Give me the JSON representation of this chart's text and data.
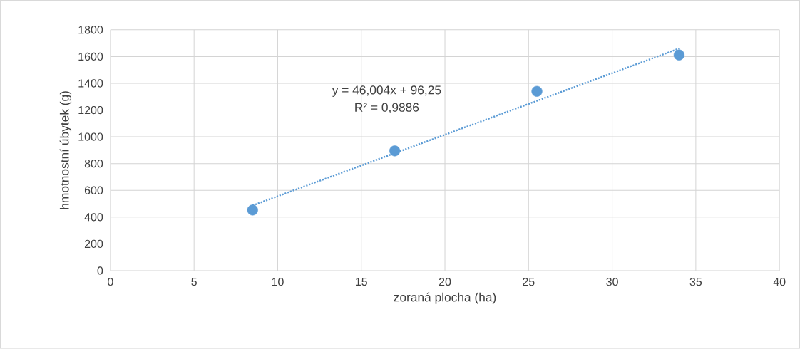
{
  "chart_data": {
    "type": "scatter",
    "xlabel": "zoraná plocha (ha)",
    "ylabel": "hmotnostní úbytek (g)",
    "xlim": [
      0,
      40
    ],
    "ylim": [
      0,
      1800
    ],
    "xticks": [
      0,
      5,
      10,
      15,
      20,
      25,
      30,
      35,
      40
    ],
    "yticks": [
      0,
      200,
      400,
      600,
      800,
      1000,
      1200,
      1400,
      1600,
      1800
    ],
    "grid": true,
    "series": [
      {
        "color": "#5b9bd5",
        "marker": "circle",
        "x": [
          8.5,
          17,
          25.5,
          34
        ],
        "values": [
          453,
          895,
          1340,
          1612
        ]
      },
      {
        "type": "line",
        "color": "#5b9bd5",
        "line_style": "dotted",
        "marker": "none",
        "x": [
          8.5,
          34
        ],
        "values": [
          487,
          1660
        ]
      }
    ],
    "annotations": [
      "y = 46,004x + 96,25",
      "R² = 0,9886"
    ]
  }
}
